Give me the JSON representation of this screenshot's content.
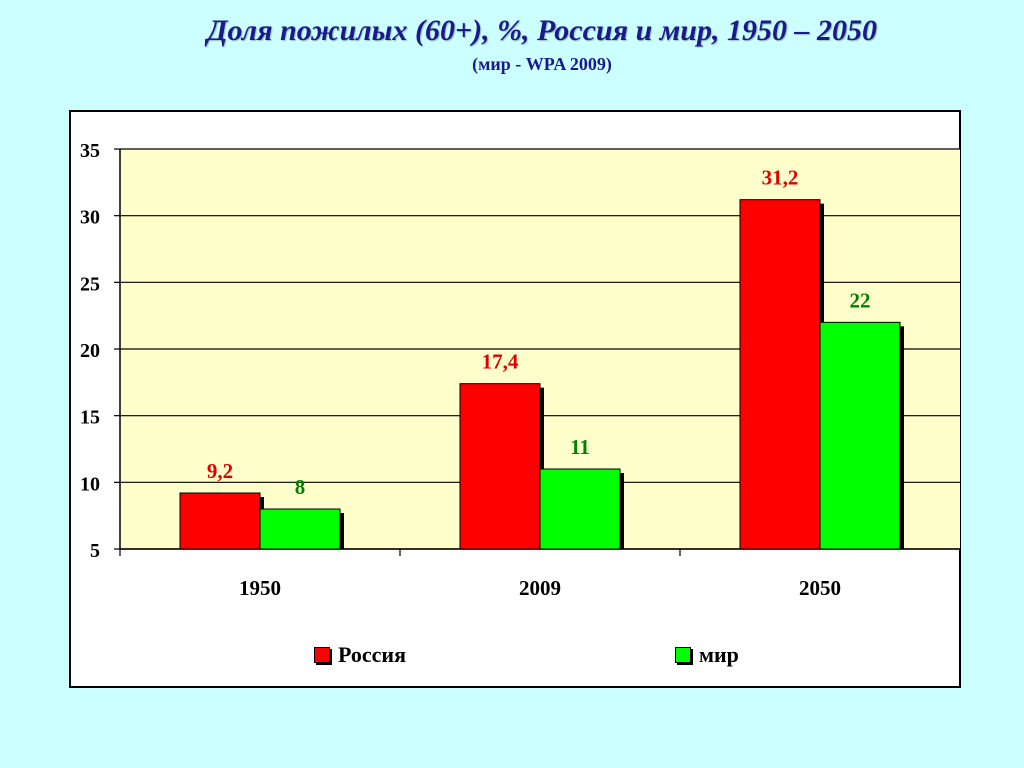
{
  "title": "Доля пожилых (60+), %, Россия и мир, 1950 – 2050",
  "subtitle": "(мир - WPA 2009)",
  "chart_data": {
    "type": "bar",
    "categories": [
      "1950",
      "2009",
      "2050"
    ],
    "series": [
      {
        "name": "Россия",
        "values": [
          9.2,
          17.4,
          31.2
        ],
        "labels": [
          "9,2",
          "17,4",
          "31,2"
        ],
        "color": "#ff0000",
        "label_color": "#e00000"
      },
      {
        "name": "мир",
        "values": [
          8,
          11,
          22
        ],
        "labels": [
          "8",
          "11",
          "22"
        ],
        "color": "#00ff00",
        "label_color": "#008000"
      }
    ],
    "ylim": [
      5,
      35
    ],
    "yticks": [
      "5",
      "10",
      "15",
      "20",
      "25",
      "30",
      "35"
    ],
    "ytick_values": [
      5,
      10,
      15,
      20,
      25,
      30,
      35
    ],
    "grid": true,
    "plot_background": "#ffffcc",
    "legend_position": "bottom",
    "xlabel": "",
    "ylabel": ""
  }
}
